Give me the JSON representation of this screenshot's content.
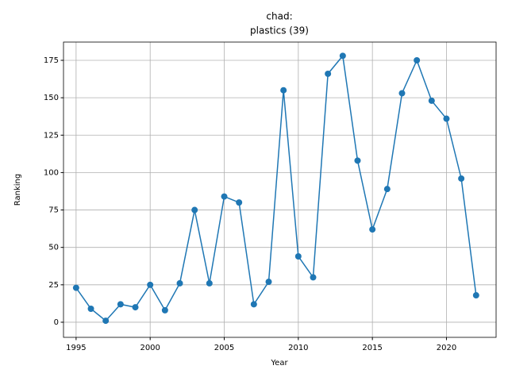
{
  "chart_data": {
    "type": "line",
    "title": [
      "chad:",
      "plastics (39)"
    ],
    "x_label": "Year",
    "y_label": "Ranking",
    "x": [
      1995,
      1996,
      1997,
      1998,
      1999,
      2000,
      2001,
      2002,
      2003,
      2004,
      2005,
      2006,
      2007,
      2008,
      2009,
      2010,
      2011,
      2012,
      2013,
      2014,
      2015,
      2016,
      2017,
      2018,
      2019,
      2020,
      2021,
      2022
    ],
    "series": [
      {
        "color": "#1f77b4",
        "values": [
          23,
          9,
          1,
          12,
          10,
          25,
          8,
          26,
          75,
          26,
          84,
          80,
          12,
          27,
          155,
          44,
          30,
          166,
          178,
          108,
          62,
          89,
          153,
          175,
          148,
          136,
          96,
          18
        ]
      }
    ],
    "xlim": [
      1994.15,
      2023.35
    ],
    "xticks": [
      1995,
      2000,
      2005,
      2010,
      2015,
      2020
    ],
    "ylim": [
      -10.1,
      187.2
    ],
    "yticks": [
      0,
      25,
      50,
      75,
      100,
      125,
      150,
      175
    ],
    "grid": true
  }
}
